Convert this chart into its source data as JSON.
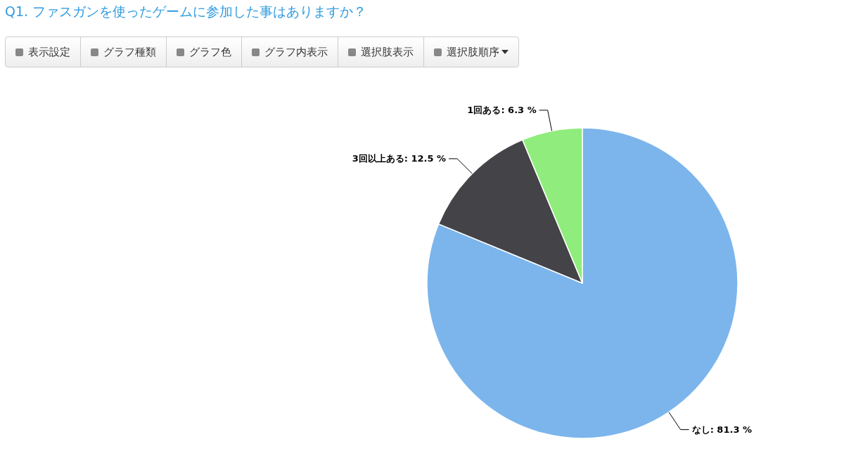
{
  "chart_data": {
    "type": "pie",
    "title": "Q1. ファスガンを使ったゲームに参加した事はありますか？",
    "annotations": [
      "表示設定",
      "グラフ種類",
      "グラフ色",
      "グラフ内表示",
      "選択肢表示",
      "選択肢順序"
    ],
    "categories": [
      "なし",
      "3回以上ある",
      "1回ある"
    ],
    "values": [
      81.3,
      12.5,
      6.3
    ],
    "colors": [
      "#7cb5ec",
      "#434348",
      "#90ed7d"
    ],
    "value_labels": [
      ": 81.3 %",
      ": 12.5 %",
      ": 6.3 %"
    ]
  }
}
